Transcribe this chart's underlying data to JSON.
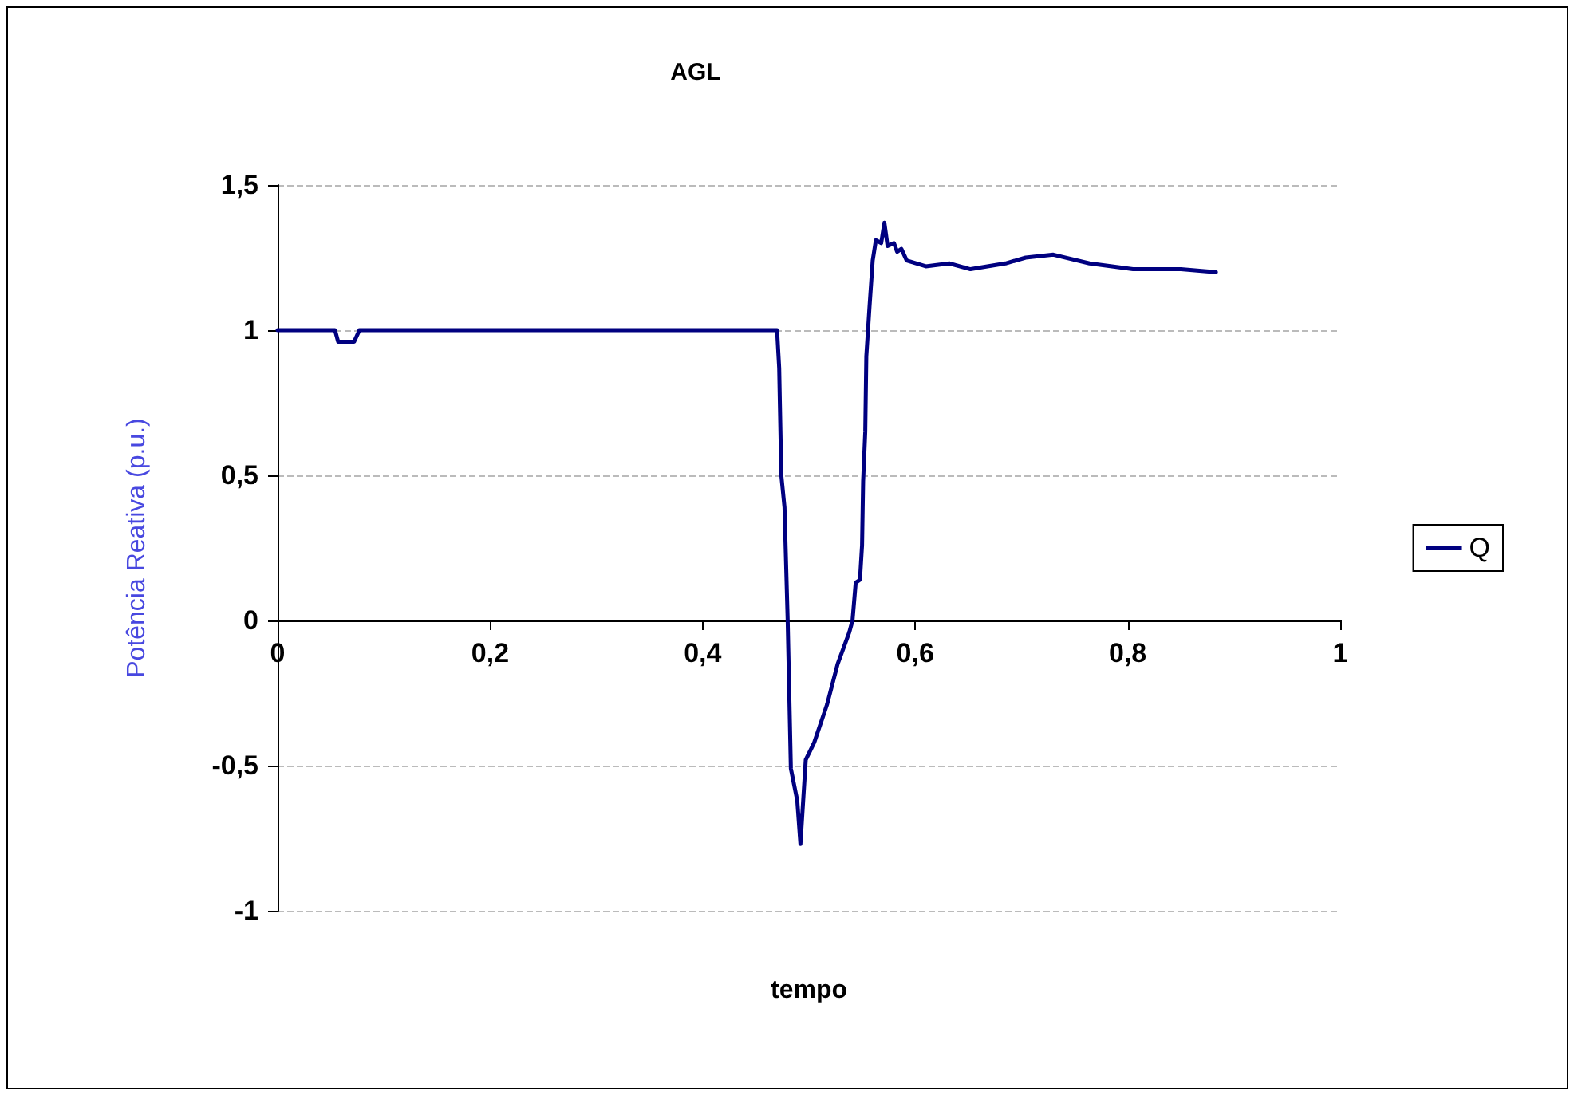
{
  "chart_data": {
    "type": "line",
    "title": "AGL",
    "xlabel": "tempo",
    "ylabel": "Potência Reativa (p.u.)",
    "xlim": [
      0,
      1
    ],
    "xticks": [
      0,
      {
        "value": 0.2,
        "label": "0,2"
      },
      {
        "value": 0.4,
        "label": "0,4"
      },
      {
        "value": 0.6,
        "label": "0,6"
      },
      {
        "value": 0.8,
        "label": "0,8"
      },
      1
    ],
    "ylim": [
      -1,
      1.5
    ],
    "yticks": [
      -1,
      {
        "value": -0.5,
        "label": "-0,5"
      },
      0,
      {
        "value": 0.5,
        "label": "0,5"
      },
      1,
      {
        "value": 1.5,
        "label": "1,5"
      }
    ],
    "grid": "y",
    "legend": "right",
    "marker": "none",
    "line_style": "solid",
    "series": [
      {
        "name": "Q",
        "color": "#000080",
        "x": [
          0,
          0.054,
          0.057,
          0.065,
          0.072,
          0.077,
          0.2,
          0.35,
          0.47,
          0.472,
          0.474,
          0.477,
          0.48,
          0.483,
          0.489,
          0.492,
          0.497,
          0.505,
          0.517,
          0.527,
          0.538,
          0.541,
          0.544,
          0.548,
          0.55,
          0.551,
          0.553,
          0.554,
          0.557,
          0.56,
          0.563,
          0.568,
          0.571,
          0.574,
          0.58,
          0.583,
          0.587,
          0.592,
          0.61,
          0.632,
          0.652,
          0.685,
          0.704,
          0.73,
          0.764,
          0.805,
          0.85,
          0.883
        ],
        "values": [
          1.0,
          1.0,
          0.96,
          0.96,
          0.96,
          1.0,
          1.0,
          1.0,
          1.0,
          0.87,
          0.5,
          0.39,
          0,
          -0.51,
          -0.62,
          -0.77,
          -0.48,
          -0.42,
          -0.29,
          -0.15,
          -0.04,
          0,
          0.13,
          0.14,
          0.26,
          0.48,
          0.65,
          0.91,
          1.08,
          1.24,
          1.31,
          1.3,
          1.37,
          1.29,
          1.3,
          1.27,
          1.28,
          1.24,
          1.22,
          1.23,
          1.21,
          1.23,
          1.25,
          1.26,
          1.23,
          1.21,
          1.21,
          1.2
        ]
      }
    ]
  }
}
